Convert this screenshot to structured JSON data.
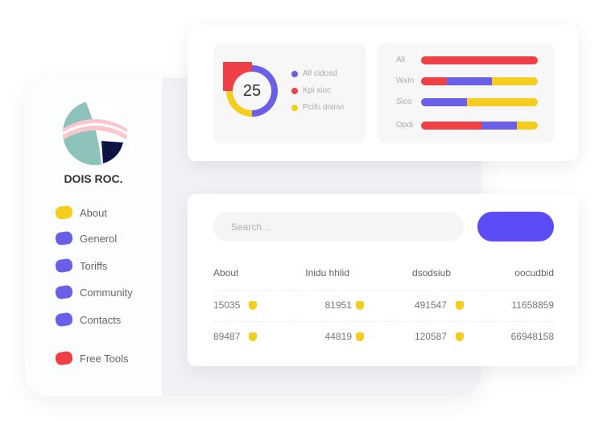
{
  "sidebar": {
    "brand": "DOIS ROC.",
    "items": [
      {
        "label": "About",
        "color": "#f4cd1e"
      },
      {
        "label": "Generol",
        "color": "#6b5fe8"
      },
      {
        "label": "Toriffs",
        "color": "#6b5fe8"
      },
      {
        "label": "Community",
        "color": "#6b5fe8"
      },
      {
        "label": "Contacts",
        "color": "#6b5fe8"
      },
      {
        "label": "Free Tools",
        "color": "#ef4046"
      }
    ]
  },
  "donut": {
    "value": "25",
    "segments": [
      {
        "color": "#6b5fe8",
        "fraction": 0.5
      },
      {
        "color": "#f4cd1e",
        "fraction": 0.25
      },
      {
        "color": "#ef4046",
        "fraction": 0.25
      }
    ],
    "legend": [
      {
        "label": "All cidosd",
        "color": "#6b5fe8"
      },
      {
        "label": "Kpi xioc",
        "color": "#ef4046"
      },
      {
        "label": "Pcifn doinvi",
        "color": "#f4cd1e"
      }
    ]
  },
  "bars": [
    {
      "label": "All",
      "segments": [
        {
          "color": "#ef4046",
          "pct": 100
        }
      ]
    },
    {
      "label": "Wxin",
      "segments": [
        {
          "color": "#ef4046",
          "pct": 22
        },
        {
          "color": "#6b5fe8",
          "pct": 39
        },
        {
          "color": "#f4cd1e",
          "pct": 39
        }
      ]
    },
    {
      "label": "Sico",
      "segments": [
        {
          "color": "#6b5fe8",
          "pct": 39
        },
        {
          "color": "#f4cd1e",
          "pct": 61
        }
      ]
    },
    {
      "label": "Opdi",
      "segments": [
        {
          "color": "#ef4046",
          "pct": 52
        },
        {
          "color": "#6b5fe8",
          "pct": 30
        },
        {
          "color": "#f4cd1e",
          "pct": 18
        }
      ]
    }
  ],
  "search": {
    "placeholder": "Search..."
  },
  "table": {
    "headers": [
      "About",
      "Inidu hhlid",
      "dsodsiub",
      "oocudbid"
    ],
    "rows": [
      [
        "15035",
        "81951",
        "491547",
        "11658859"
      ],
      [
        "89487",
        "44819",
        "120587",
        "66948158"
      ]
    ]
  }
}
